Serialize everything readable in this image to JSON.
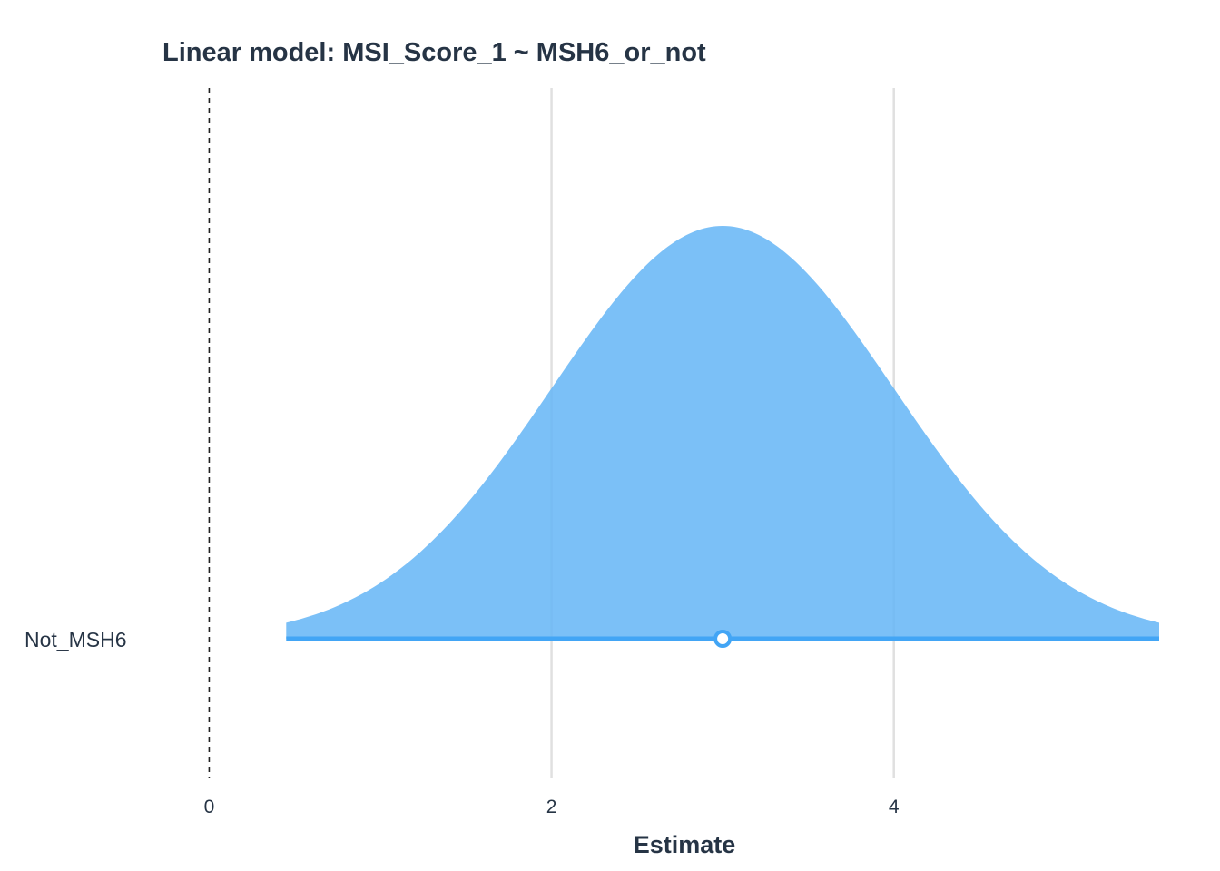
{
  "chart_data": {
    "type": "area",
    "title": "Linear model: MSI_Score_1 ~ MSH6_or_not",
    "xlabel": "Estimate",
    "ylabel": "",
    "xlim": [
      -0.75,
      5.55
    ],
    "x_ticks": [
      0,
      2,
      4
    ],
    "x_tick_labels": [
      "0",
      "2",
      "4"
    ],
    "reference_line": 0,
    "grid": "vertical major",
    "legend": "none",
    "categories": [
      "Not_MSH6"
    ],
    "series": [
      {
        "name": "Not_MSH6",
        "estimate": 3.0,
        "std_error": 1.0,
        "interval": [
          0.45,
          5.55
        ]
      }
    ],
    "colors": {
      "density_fill": "#64B5F6",
      "interval_line": "#42A5F5",
      "point_stroke": "#42A5F5",
      "point_fill": "#ffffff",
      "grid": "#e0e0e0",
      "reference": "#222222",
      "text": "#263445"
    }
  }
}
